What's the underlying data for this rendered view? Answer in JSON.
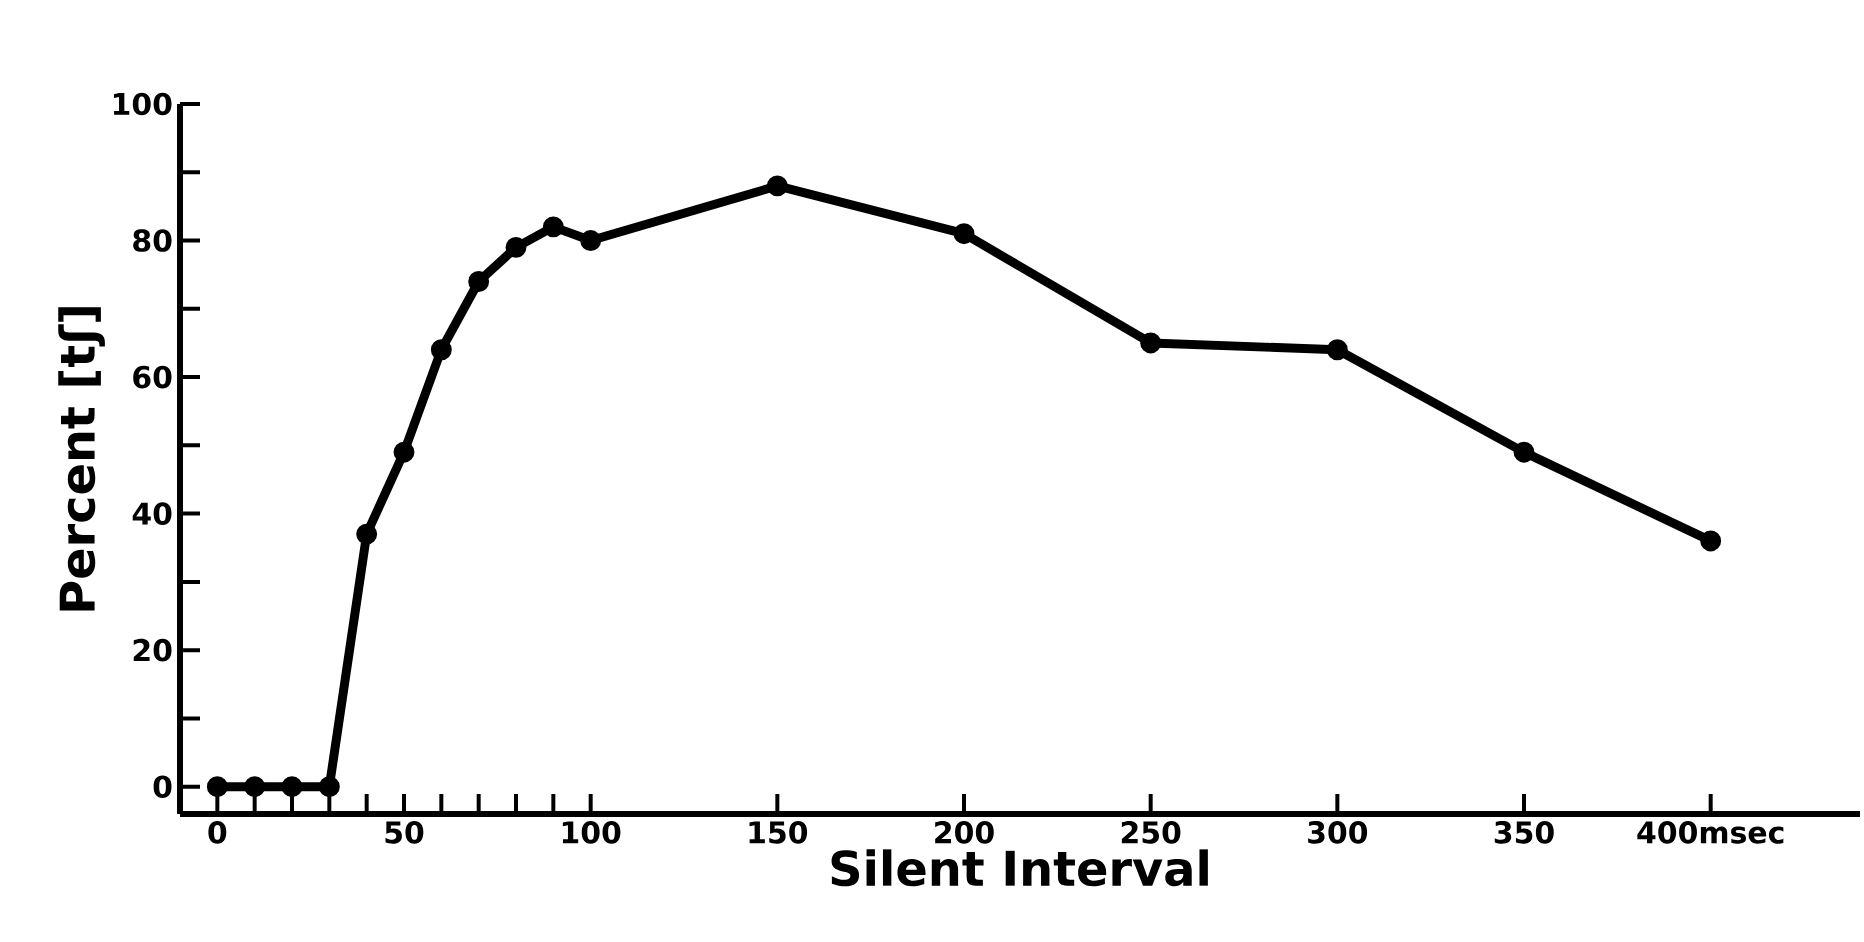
{
  "chart_data": {
    "type": "line",
    "xlabel": "Silent Interval",
    "ylabel": "Percent [tʃ]",
    "x": [
      0,
      10,
      20,
      30,
      40,
      50,
      60,
      70,
      80,
      90,
      100,
      150,
      200,
      250,
      300,
      350,
      400
    ],
    "series": [
      {
        "color": "#000000",
        "values": [
          0,
          0,
          0,
          0,
          37,
          49,
          64,
          74,
          79,
          82,
          80,
          88,
          81,
          65,
          64,
          49,
          36
        ]
      }
    ],
    "xlim": [
      -10,
      440
    ],
    "ylim": [
      -4,
      100
    ],
    "xticks": [
      0,
      {
        "value": 10,
        "label": null
      },
      {
        "value": 20,
        "label": null
      },
      {
        "value": 30,
        "label": null
      },
      {
        "value": 40,
        "label": null
      },
      50,
      {
        "value": 60,
        "label": null
      },
      {
        "value": 70,
        "label": null
      },
      {
        "value": 80,
        "label": null
      },
      {
        "value": 90,
        "label": null
      },
      100,
      150,
      200,
      250,
      300,
      350,
      {
        "value": 400,
        "label": "400msec"
      }
    ],
    "yticks": [
      0,
      {
        "value": 10,
        "label": null
      },
      20,
      {
        "value": 30,
        "label": null
      },
      40,
      {
        "value": 50,
        "label": null
      },
      60,
      {
        "value": 70,
        "label": null
      },
      80,
      {
        "value": 90,
        "label": null
      },
      100
    ],
    "marker": "circle",
    "line_style": "solid"
  }
}
